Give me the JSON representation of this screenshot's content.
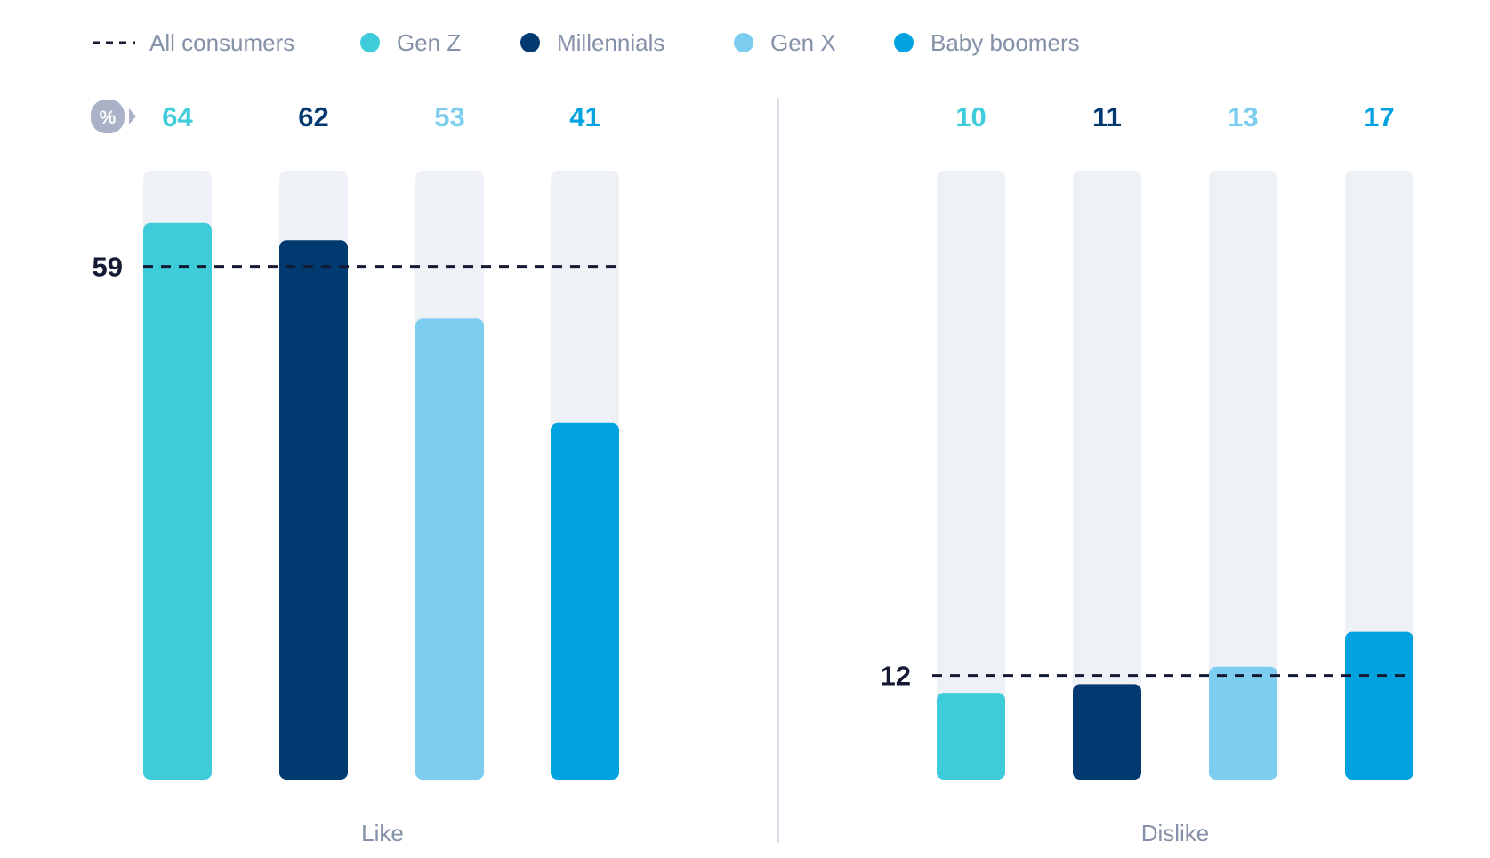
{
  "chart_data": {
    "type": "bar",
    "unit": "%",
    "ylim": [
      0,
      70
    ],
    "legend": {
      "position": "top-left",
      "average_label": "All consumers",
      "series_names": [
        "Gen Z",
        "Millennials",
        "Gen X",
        "Baby boomers"
      ]
    },
    "series_colors": [
      "#3eccdb",
      "#003a70",
      "#7dcdf1",
      "#00a3e0"
    ],
    "colors": {
      "track": "#eef1f6",
      "average_line": "#141a33",
      "axis_text": "#8591a8",
      "divider": "#dde2ea",
      "unit_badge": "#a9b2c6"
    },
    "panels": [
      {
        "category": "Like",
        "values": [
          64,
          62,
          53,
          41
        ],
        "average": 59
      },
      {
        "category": "Dislike",
        "values": [
          10,
          11,
          13,
          17
        ],
        "average": 12
      }
    ]
  }
}
